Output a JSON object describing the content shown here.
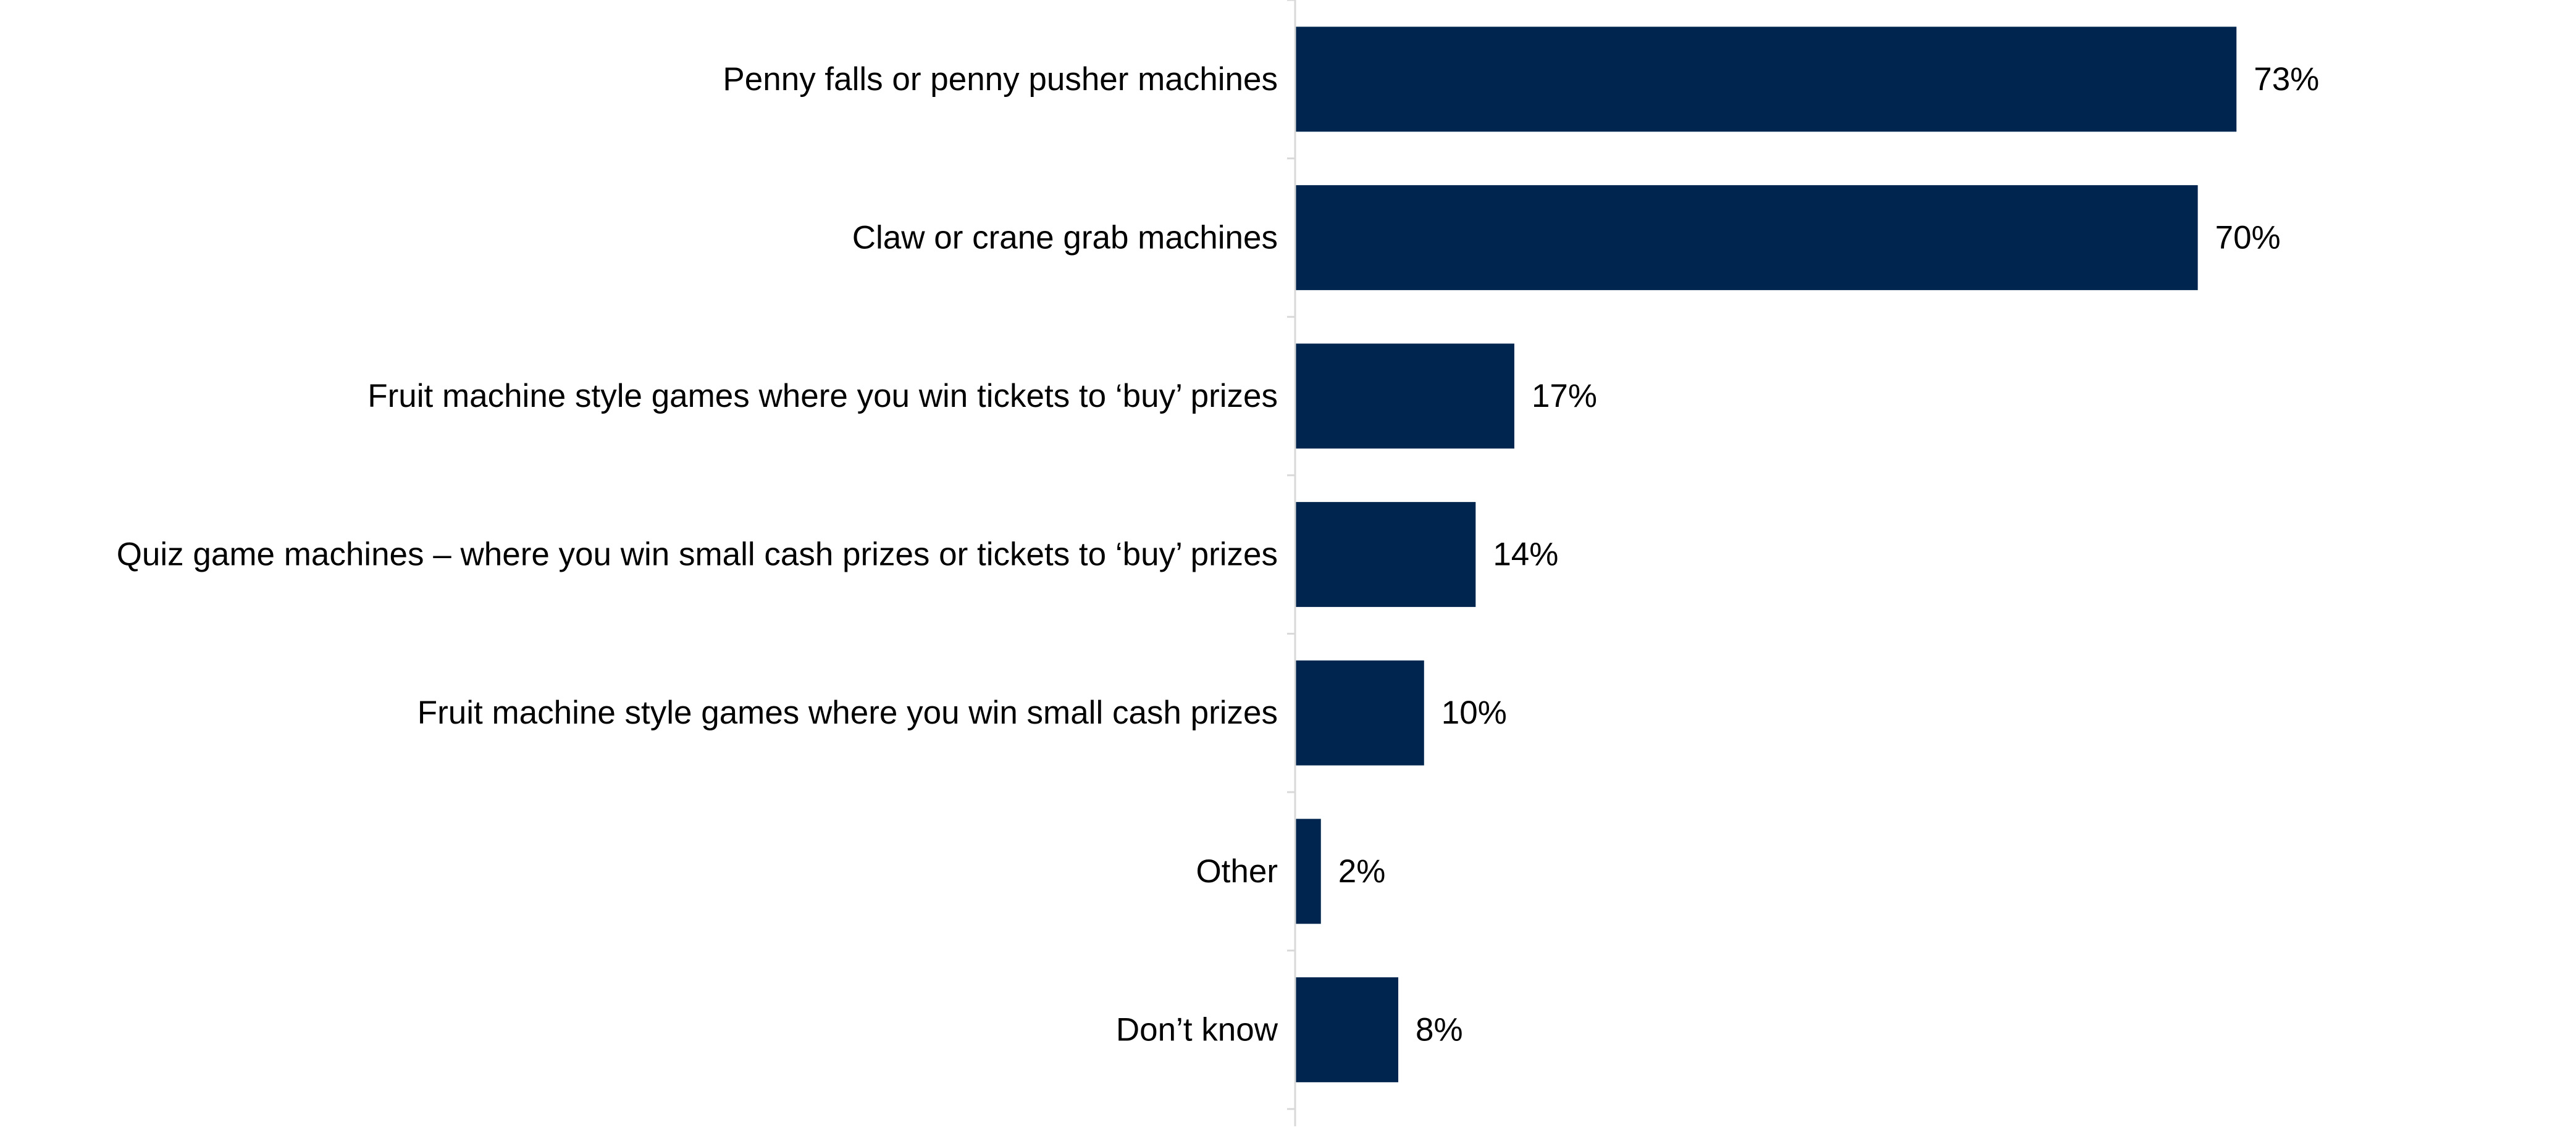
{
  "chart_data": {
    "type": "bar",
    "orientation": "horizontal",
    "categories": [
      "Penny falls or penny pusher machines",
      "Claw or crane grab machines",
      "Fruit machine style games where you win tickets to ‘buy’ prizes",
      "Quiz game machines – where you win small cash prizes or tickets to ‘buy’ prizes",
      "Fruit machine style games where you win small cash prizes",
      "Other",
      "Don’t know"
    ],
    "values": [
      73,
      70,
      17,
      14,
      10,
      2,
      8
    ],
    "value_labels": [
      "73%",
      "70%",
      "17%",
      "14%",
      "10%",
      "2%",
      "8%"
    ],
    "unit": "%",
    "title": "",
    "xlabel": "",
    "ylabel": "",
    "xlim": [
      0,
      100
    ],
    "grid": false,
    "legend": "none",
    "bar_color": "#00264f",
    "axis_color": "#d9d9d9"
  }
}
